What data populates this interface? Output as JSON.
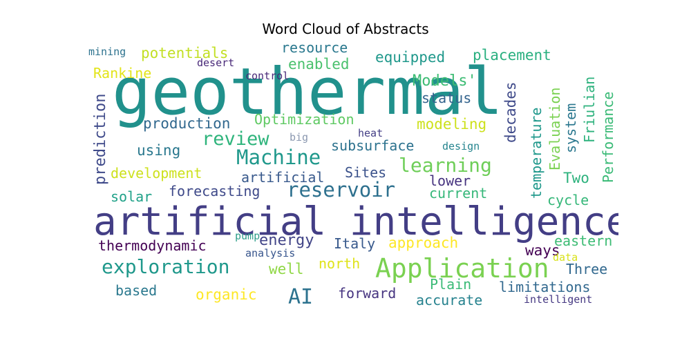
{
  "chart_data": {
    "type": "wordcloud",
    "title": "Word Cloud of Abstracts",
    "words": [
      {
        "text": "geothermal",
        "weight": 1.0,
        "color": "#21918c",
        "rotated": false
      },
      {
        "text": "artificial intelligence",
        "weight": 0.88,
        "color": "#433e85",
        "rotated": false
      },
      {
        "text": "Application",
        "weight": 0.58,
        "color": "#7ad151",
        "rotated": false
      },
      {
        "text": "exploration",
        "weight": 0.44,
        "color": "#1f988b",
        "rotated": false
      },
      {
        "text": "reservoir",
        "weight": 0.44,
        "color": "#2d708e",
        "rotated": false
      },
      {
        "text": "Machine",
        "weight": 0.43,
        "color": "#1f988b",
        "rotated": false
      },
      {
        "text": "learning",
        "weight": 0.43,
        "color": "#6ece58",
        "rotated": false
      },
      {
        "text": "review",
        "weight": 0.42,
        "color": "#2fb47c",
        "rotated": false
      },
      {
        "text": "AI",
        "weight": 0.45,
        "color": "#2c728e",
        "rotated": false
      },
      {
        "text": "Models'",
        "weight": 0.33,
        "color": "#3dbc74",
        "rotated": false
      },
      {
        "text": "Optimization",
        "weight": 0.31,
        "color": "#5ec962",
        "rotated": false
      },
      {
        "text": "production",
        "weight": 0.3,
        "color": "#31688e",
        "rotated": false
      },
      {
        "text": "modeling",
        "weight": 0.3,
        "color": "#cde11d",
        "rotated": false
      },
      {
        "text": "potentials",
        "weight": 0.3,
        "color": "#c2df23",
        "rotated": false
      },
      {
        "text": "resource",
        "weight": 0.29,
        "color": "#2a788e",
        "rotated": false
      },
      {
        "text": "equipped",
        "weight": 0.3,
        "color": "#1f988b",
        "rotated": false
      },
      {
        "text": "placement",
        "weight": 0.3,
        "color": "#29af7f",
        "rotated": false
      },
      {
        "text": "enabled",
        "weight": 0.3,
        "color": "#4ac16d",
        "rotated": false
      },
      {
        "text": "Rankine",
        "weight": 0.29,
        "color": "#e2e418",
        "rotated": false
      },
      {
        "text": "status",
        "weight": 0.29,
        "color": "#33638d",
        "rotated": false
      },
      {
        "text": "subsurface",
        "weight": 0.29,
        "color": "#2c728e",
        "rotated": false
      },
      {
        "text": "using",
        "weight": 0.28,
        "color": "#2a788e",
        "rotated": false
      },
      {
        "text": "artificial",
        "weight": 0.28,
        "color": "#38598c",
        "rotated": false
      },
      {
        "text": "Sites",
        "weight": 0.28,
        "color": "#3b528b",
        "rotated": false
      },
      {
        "text": "development",
        "weight": 0.29,
        "color": "#cde11d",
        "rotated": false
      },
      {
        "text": "forecasting",
        "weight": 0.28,
        "color": "#3e4989",
        "rotated": false
      },
      {
        "text": "lower",
        "weight": 0.28,
        "color": "#46337f",
        "rotated": false
      },
      {
        "text": "current",
        "weight": 0.28,
        "color": "#35b779",
        "rotated": false
      },
      {
        "text": "solar",
        "weight": 0.28,
        "color": "#1fa188",
        "rotated": false
      },
      {
        "text": "Two",
        "weight": 0.28,
        "color": "#2db27d",
        "rotated": false
      },
      {
        "text": "cycle",
        "weight": 0.27,
        "color": "#35b779",
        "rotated": false
      },
      {
        "text": "thermodynamic",
        "weight": 0.28,
        "color": "#440154",
        "rotated": false
      },
      {
        "text": "energy",
        "weight": 0.3,
        "color": "#414487",
        "rotated": false
      },
      {
        "text": "Italy",
        "weight": 0.28,
        "color": "#38598c",
        "rotated": false
      },
      {
        "text": "approach",
        "weight": 0.28,
        "color": "#fde725",
        "rotated": false
      },
      {
        "text": "eastern",
        "weight": 0.27,
        "color": "#3dbc74",
        "rotated": false
      },
      {
        "text": "ways",
        "weight": 0.28,
        "color": "#440154",
        "rotated": false
      },
      {
        "text": "north",
        "weight": 0.27,
        "color": "#dfe318",
        "rotated": false
      },
      {
        "text": "well",
        "weight": 0.28,
        "color": "#8fd744",
        "rotated": false
      },
      {
        "text": "Three",
        "weight": 0.28,
        "color": "#31688e",
        "rotated": false
      },
      {
        "text": "based",
        "weight": 0.27,
        "color": "#2a788e",
        "rotated": false
      },
      {
        "text": "organic",
        "weight": 0.27,
        "color": "#fde725",
        "rotated": false
      },
      {
        "text": "forward",
        "weight": 0.28,
        "color": "#463480",
        "rotated": false
      },
      {
        "text": "Plain",
        "weight": 0.27,
        "color": "#3aba76",
        "rotated": false
      },
      {
        "text": "limitations",
        "weight": 0.28,
        "color": "#31688e",
        "rotated": false
      },
      {
        "text": "accurate",
        "weight": 0.27,
        "color": "#26828e",
        "rotated": false
      },
      {
        "text": "mining",
        "weight": 0.22,
        "color": "#2c728e",
        "rotated": false
      },
      {
        "text": "desert",
        "weight": 0.21,
        "color": "#482878",
        "rotated": false
      },
      {
        "text": "control",
        "weight": 0.2,
        "color": "#482878",
        "rotated": false
      },
      {
        "text": "big",
        "weight": 0.21,
        "color": "#8b98b0",
        "rotated": false
      },
      {
        "text": "heat",
        "weight": 0.21,
        "color": "#433e85",
        "rotated": false
      },
      {
        "text": "design",
        "weight": 0.21,
        "color": "#25848e",
        "rotated": false
      },
      {
        "text": "pump",
        "weight": 0.21,
        "color": "#2e9e8a",
        "rotated": false
      },
      {
        "text": "analysis",
        "weight": 0.2,
        "color": "#36548c",
        "rotated": false
      },
      {
        "text": "data",
        "weight": 0.2,
        "color": "#d8e219",
        "rotated": false
      },
      {
        "text": "intelligent",
        "weight": 0.21,
        "color": "#453882",
        "rotated": false
      },
      {
        "text": "prediction",
        "weight": 0.29,
        "color": "#3f4a8a",
        "rotated": true
      },
      {
        "text": "decades",
        "weight": 0.29,
        "color": "#3e4989",
        "rotated": true
      },
      {
        "text": "temperature",
        "weight": 0.28,
        "color": "#1f988b",
        "rotated": true
      },
      {
        "text": "Evaluation",
        "weight": 0.28,
        "color": "#7ad151",
        "rotated": true
      },
      {
        "text": "system",
        "weight": 0.28,
        "color": "#2a778e",
        "rotated": true
      },
      {
        "text": "Friulian",
        "weight": 0.28,
        "color": "#2db27d",
        "rotated": true
      },
      {
        "text": "Performance",
        "weight": 0.28,
        "color": "#3aba76",
        "rotated": true
      }
    ]
  }
}
